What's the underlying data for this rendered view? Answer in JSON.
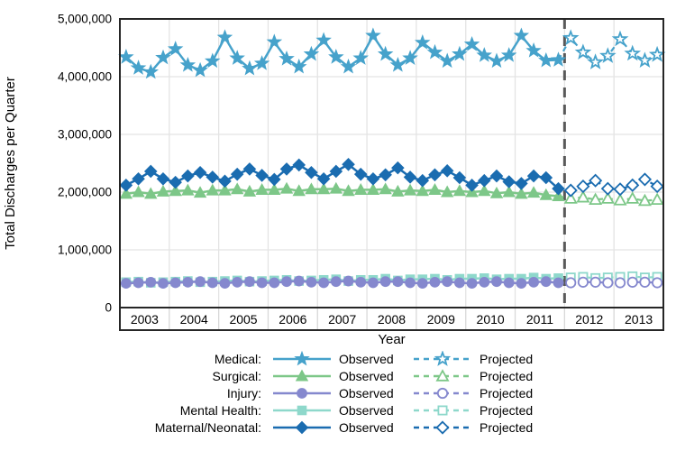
{
  "legend": {
    "observed": "Observed",
    "projected": "Projected"
  },
  "chart_data": {
    "type": "line",
    "title": "",
    "xlabel": "Year",
    "ylabel": "Total Discharges per Quarter",
    "ylim": [
      0,
      5000000
    ],
    "yticks": [
      0,
      1000000,
      2000000,
      3000000,
      4000000,
      5000000
    ],
    "ytick_labels": [
      "0",
      "1,000,000",
      "2,000,000",
      "3,000,000",
      "4,000,000",
      "5,000,000"
    ],
    "years": [
      2003,
      2004,
      2005,
      2006,
      2007,
      2008,
      2009,
      2010,
      2011,
      2012,
      2013
    ],
    "points_per_year": 4,
    "observed_years": "2003-2011",
    "projected_years": "2012-2013",
    "forecast_divider_year_index": 9,
    "grid": true,
    "legend_position": "bottom",
    "divider_color": "#595959",
    "series": [
      {
        "name": "Medical",
        "legend_label": "Medical:",
        "color": "#46a2cb",
        "marker": "star",
        "observed": [
          4340000,
          4150000,
          4080000,
          4330000,
          4480000,
          4200000,
          4110000,
          4270000,
          4680000,
          4320000,
          4140000,
          4230000,
          4600000,
          4310000,
          4170000,
          4390000,
          4630000,
          4340000,
          4170000,
          4320000,
          4710000,
          4390000,
          4200000,
          4320000,
          4590000,
          4420000,
          4270000,
          4390000,
          4560000,
          4370000,
          4270000,
          4370000,
          4710000,
          4450000,
          4280000,
          4290000
        ],
        "projected": [
          4670000,
          4420000,
          4250000,
          4360000,
          4650000,
          4400000,
          4280000,
          4380000
        ]
      },
      {
        "name": "Surgical",
        "legend_label": "Surgical:",
        "color": "#7dc788",
        "marker": "triangle",
        "observed": [
          1970000,
          2000000,
          1970000,
          2010000,
          2020000,
          2030000,
          1990000,
          2030000,
          2030000,
          2050000,
          2010000,
          2040000,
          2040000,
          2060000,
          2020000,
          2050000,
          2050000,
          2060000,
          2020000,
          2040000,
          2040000,
          2050000,
          2010000,
          2030000,
          2020000,
          2040000,
          2000000,
          2020000,
          2000000,
          2020000,
          1980000,
          2000000,
          1970000,
          1990000,
          1950000,
          1930000
        ],
        "projected": [
          1890000,
          1910000,
          1870000,
          1890000,
          1860000,
          1890000,
          1850000,
          1870000
        ]
      },
      {
        "name": "Injury",
        "legend_label": "Injury:",
        "color": "#8588ce",
        "marker": "circle",
        "observed": [
          420000,
          430000,
          440000,
          420000,
          430000,
          440000,
          450000,
          430000,
          420000,
          440000,
          450000,
          430000,
          430000,
          450000,
          460000,
          440000,
          430000,
          450000,
          460000,
          440000,
          430000,
          450000,
          450000,
          430000,
          420000,
          440000,
          450000,
          430000,
          420000,
          440000,
          450000,
          430000,
          420000,
          440000,
          450000,
          430000
        ],
        "projected": [
          430000,
          440000,
          440000,
          430000,
          430000,
          440000,
          440000,
          430000
        ]
      },
      {
        "name": "Mental Health",
        "legend_label": "Mental Health:",
        "color": "#8ed8cb",
        "marker": "square",
        "observed": [
          440000,
          450000,
          430000,
          440000,
          450000,
          460000,
          440000,
          450000,
          460000,
          470000,
          450000,
          460000,
          470000,
          480000,
          460000,
          470000,
          480000,
          490000,
          460000,
          480000,
          480000,
          500000,
          470000,
          490000,
          490000,
          500000,
          480000,
          500000,
          500000,
          510000,
          490000,
          500000,
          500000,
          520000,
          500000,
          510000
        ],
        "projected": [
          520000,
          530000,
          510000,
          520000,
          530000,
          540000,
          520000,
          530000
        ]
      },
      {
        "name": "Maternal/Neonatal",
        "legend_label": "Maternal/Neonatal:",
        "color": "#1a6cb0",
        "marker": "diamond",
        "observed": [
          2120000,
          2230000,
          2360000,
          2230000,
          2170000,
          2280000,
          2340000,
          2260000,
          2190000,
          2310000,
          2400000,
          2290000,
          2220000,
          2400000,
          2470000,
          2340000,
          2230000,
          2360000,
          2480000,
          2310000,
          2230000,
          2300000,
          2420000,
          2260000,
          2200000,
          2300000,
          2370000,
          2250000,
          2120000,
          2200000,
          2280000,
          2180000,
          2150000,
          2280000,
          2250000,
          2060000
        ],
        "projected": [
          2030000,
          2100000,
          2200000,
          2060000,
          2050000,
          2120000,
          2220000,
          2100000
        ]
      }
    ]
  }
}
